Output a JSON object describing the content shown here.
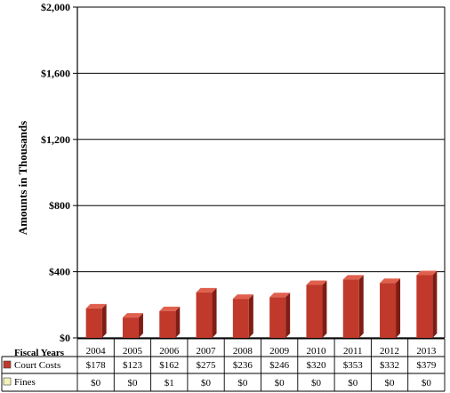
{
  "chart_data": {
    "type": "bar",
    "ylabel": "Amounts in Thousands",
    "ylim": [
      0,
      2000
    ],
    "yticks": [
      "$0",
      "$400",
      "$800",
      "$1,200",
      "$1,600",
      "$2,000"
    ],
    "ytick_values": [
      0,
      400,
      800,
      1200,
      1600,
      2000
    ],
    "categories_header": "Fiscal Years",
    "categories": [
      "2004",
      "2005",
      "2006",
      "2007",
      "2008",
      "2009",
      "2010",
      "2011",
      "2012",
      "2013"
    ],
    "grid": true,
    "series": [
      {
        "name": "Court Costs",
        "color": "#c0392b",
        "values": [
          178,
          123,
          162,
          275,
          236,
          246,
          320,
          353,
          332,
          379
        ],
        "labels": [
          "$178",
          "$123",
          "$162",
          "$275",
          "$236",
          "$246",
          "$320",
          "$353",
          "$332",
          "$379"
        ]
      },
      {
        "name": "Fines",
        "color": "#f3f3b8",
        "values": [
          0,
          0,
          1,
          0,
          0,
          0,
          0,
          0,
          0,
          0
        ],
        "labels": [
          "$0",
          "$0",
          "$1",
          "$0",
          "$0",
          "$0",
          "$0",
          "$0",
          "$0",
          "$0"
        ]
      }
    ]
  }
}
